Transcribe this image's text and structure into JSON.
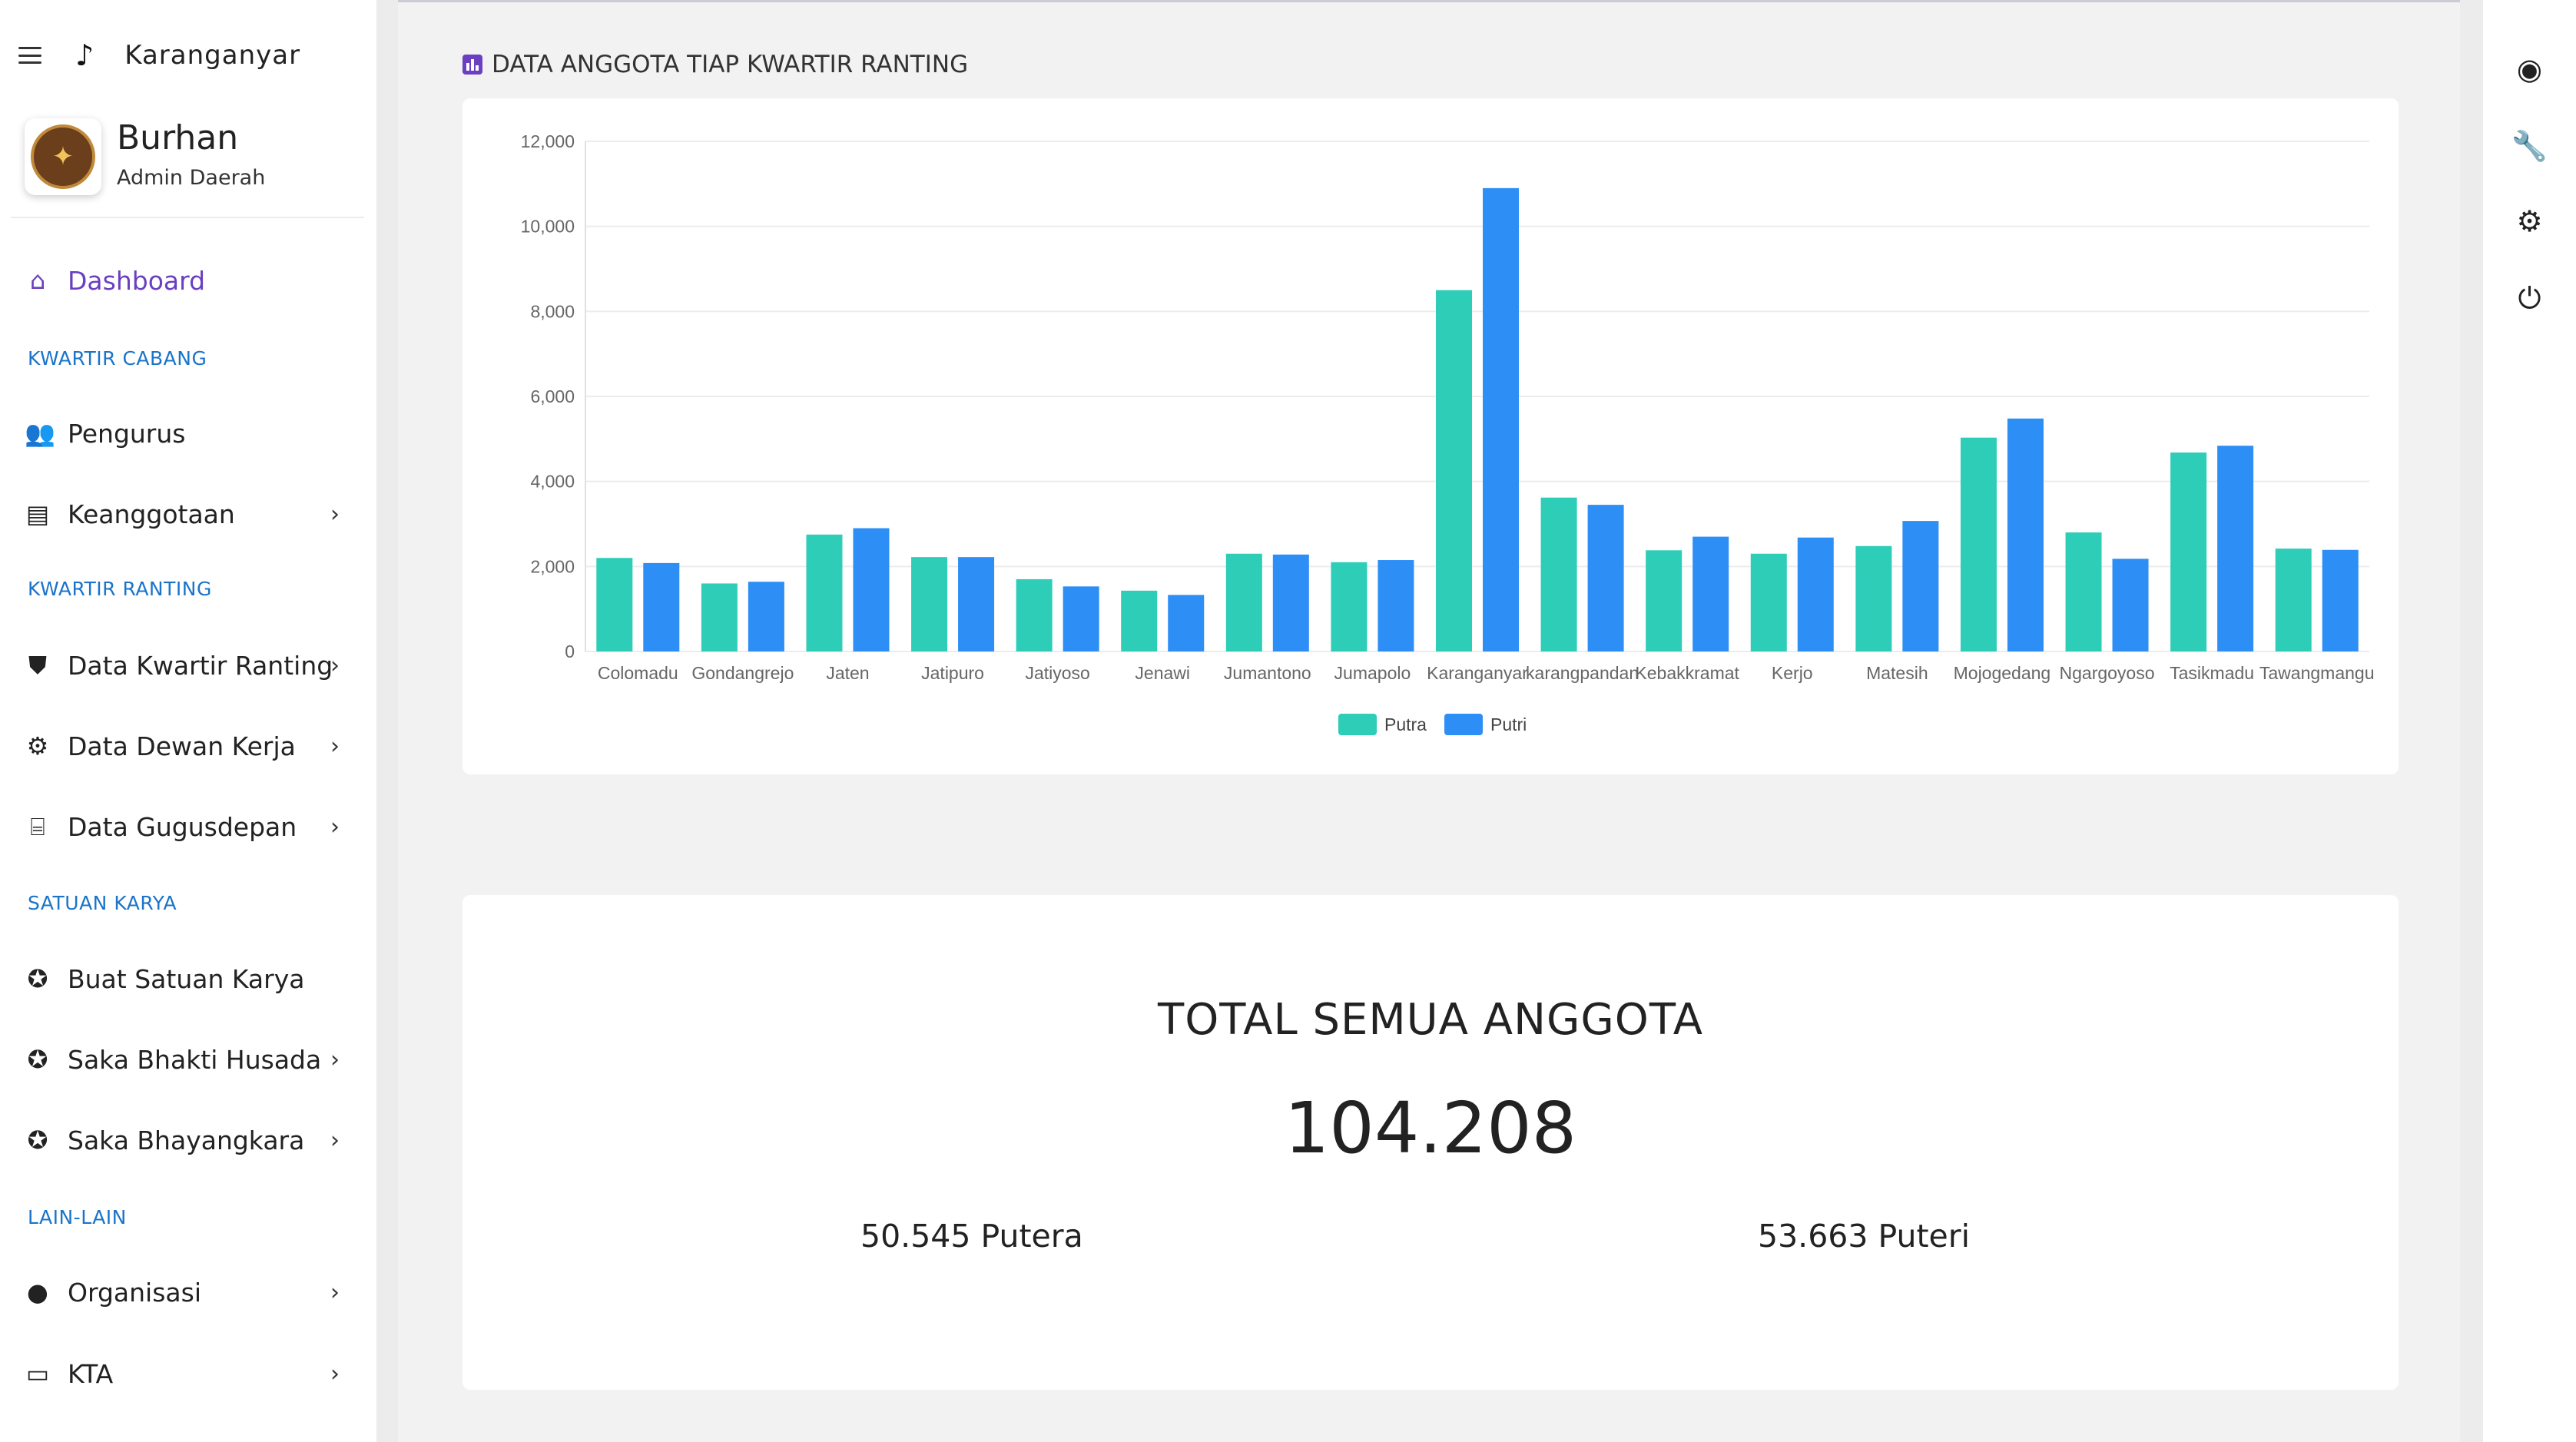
{
  "app": {
    "title": "Karanganyar",
    "brand_icon": "music-note-icon"
  },
  "user": {
    "name": "Burhan",
    "role": "Admin Daerah"
  },
  "nav": {
    "dashboard": "Dashboard",
    "sections": {
      "kwartir_cabang": "KWARTIR CABANG",
      "kwartir_ranting": "KWARTIR RANTING",
      "satuan_karya": "SATUAN KARYA",
      "lain_lain": "LAIN-LAIN"
    },
    "items": {
      "pengurus": "Pengurus",
      "keanggotaan": "Keanggotaan",
      "data_kwartir_ranting": "Data Kwartir Ranting",
      "data_dewan_kerja": "Data Dewan Kerja",
      "data_gugusdepan": "Data Gugusdepan",
      "buat_satuan_karya": "Buat Satuan Karya",
      "saka_bhakti_husada": "Saka Bhakti Husada",
      "saka_bhayangkara": "Saka Bhayangkara",
      "organisasi": "Organisasi",
      "kta": "KTA"
    }
  },
  "right_icons": [
    "user-circle-icon",
    "wrench-icon",
    "settings-gear-icon",
    "power-icon"
  ],
  "chart_panel": {
    "title": "DATA ANGGOTA TIAP KWARTIR RANTING"
  },
  "chart_data": {
    "type": "bar",
    "categories": [
      "Colomadu",
      "Gondangrejo",
      "Jaten",
      "Jatipuro",
      "Jatiyoso",
      "Jenawi",
      "Jumantono",
      "Jumapolo",
      "Karanganyar",
      "Karangpandan",
      "Kebakkramat",
      "Kerjo",
      "Matesih",
      "Mojogedang",
      "Ngargoyoso",
      "Tasikmadu",
      "Tawangmangu"
    ],
    "category_labels": [
      "Colomadu",
      "Gondangrejo",
      "Jaten",
      "Jatipuro",
      "Jatiyoso",
      "Jenawi",
      "Jumantono",
      "Jumapolo",
      "Karanganyar",
      "karangpandan",
      "Kebakkramat",
      "Kerjo",
      "Matesih",
      "Mojogedang",
      "Ngargoyoso",
      "Tasikmadu",
      "Tawangmangu"
    ],
    "series": [
      {
        "name": "Putra",
        "color": "#2dcdb8",
        "values": [
          2200,
          1600,
          2750,
          2220,
          1700,
          1430,
          2300,
          2100,
          8500,
          3620,
          2380,
          2300,
          2480,
          5030,
          2800,
          4680,
          2420
        ]
      },
      {
        "name": "Putri",
        "color": "#2d8ef5",
        "values": [
          2080,
          1640,
          2900,
          2220,
          1530,
          1330,
          2280,
          2150,
          10900,
          3450,
          2700,
          2680,
          3070,
          5480,
          2180,
          4840,
          2390
        ]
      }
    ],
    "ylim": [
      0,
      12000
    ],
    "yticks": [
      0,
      2000,
      4000,
      6000,
      8000,
      10000,
      12000
    ],
    "ytick_labels": [
      "0",
      "2,000",
      "4,000",
      "6,000",
      "8,000",
      "10,000",
      "12,000"
    ],
    "legend": "bottom-center",
    "grid": true
  },
  "totals": {
    "title": "TOTAL SEMUA ANGGOTA",
    "total": "104.208",
    "putera": "50.545 Putera",
    "puteri": "53.663 Puteri"
  }
}
